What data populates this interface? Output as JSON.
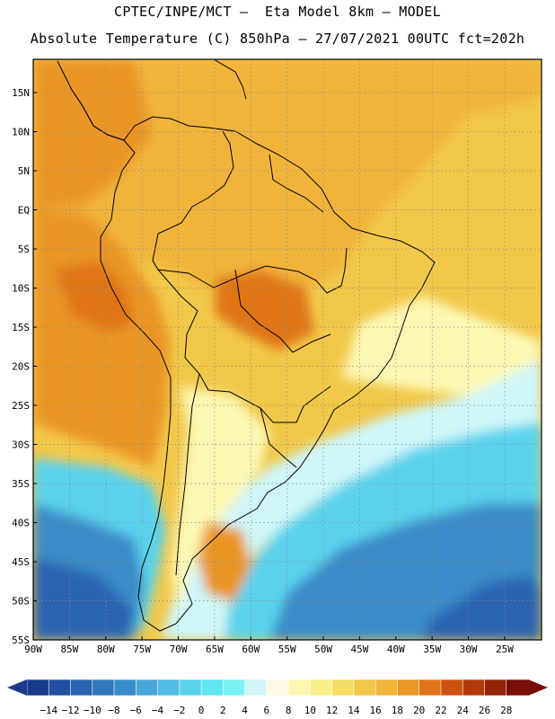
{
  "header": {
    "line1": "CPTEC/INPE/MCT –  Eta Model 8km – MODEL",
    "line2": "Absolute Temperature (C) 850hPa – 27/07/2021 00UTC fct=202h"
  },
  "axes": {
    "lat_labels": [
      "15N",
      "10N",
      "5N",
      "EQ",
      "5S",
      "10S",
      "15S",
      "20S",
      "25S",
      "30S",
      "35S",
      "40S",
      "45S",
      "50S",
      "55S"
    ],
    "lon_labels": [
      "90W",
      "85W",
      "80W",
      "75W",
      "70W",
      "65W",
      "60W",
      "55W",
      "50W",
      "45W",
      "40W",
      "35W",
      "30W",
      "25W"
    ]
  },
  "colorbar": {
    "labels": [
      "−14",
      "−12",
      "−10",
      "−8",
      "−6",
      "−4",
      "−2",
      "0",
      "2",
      "4",
      "6",
      "8",
      "10",
      "12",
      "14",
      "16",
      "18",
      "20",
      "22",
      "24",
      "26",
      "28"
    ],
    "colors": [
      "#1a3a8c",
      "#2250a0",
      "#2a64b0",
      "#3278bc",
      "#3a8cc8",
      "#4aa6d8",
      "#52bce4",
      "#5ad2ec",
      "#62e6f2",
      "#7af2f4",
      "#cef6f8",
      "#fffae8",
      "#fcf8b4",
      "#f8ee8a",
      "#f4dc66",
      "#f2c84a",
      "#f0b43a",
      "#ea9628",
      "#e07418",
      "#cc5410",
      "#b03a0c",
      "#942408",
      "#780e08"
    ]
  },
  "map_colors": {
    "ocean_south_deep": "#2a64b0",
    "ocean_south": "#3a8cc8",
    "ocean_mid": "#5ad2ec",
    "ocean_light": "#cef6f8",
    "warm_main": "#f2c84a",
    "warm_orange": "#f0b43a",
    "warm_dark": "#ea9628",
    "hot": "#e07418",
    "pale": "#fcf8b4"
  }
}
